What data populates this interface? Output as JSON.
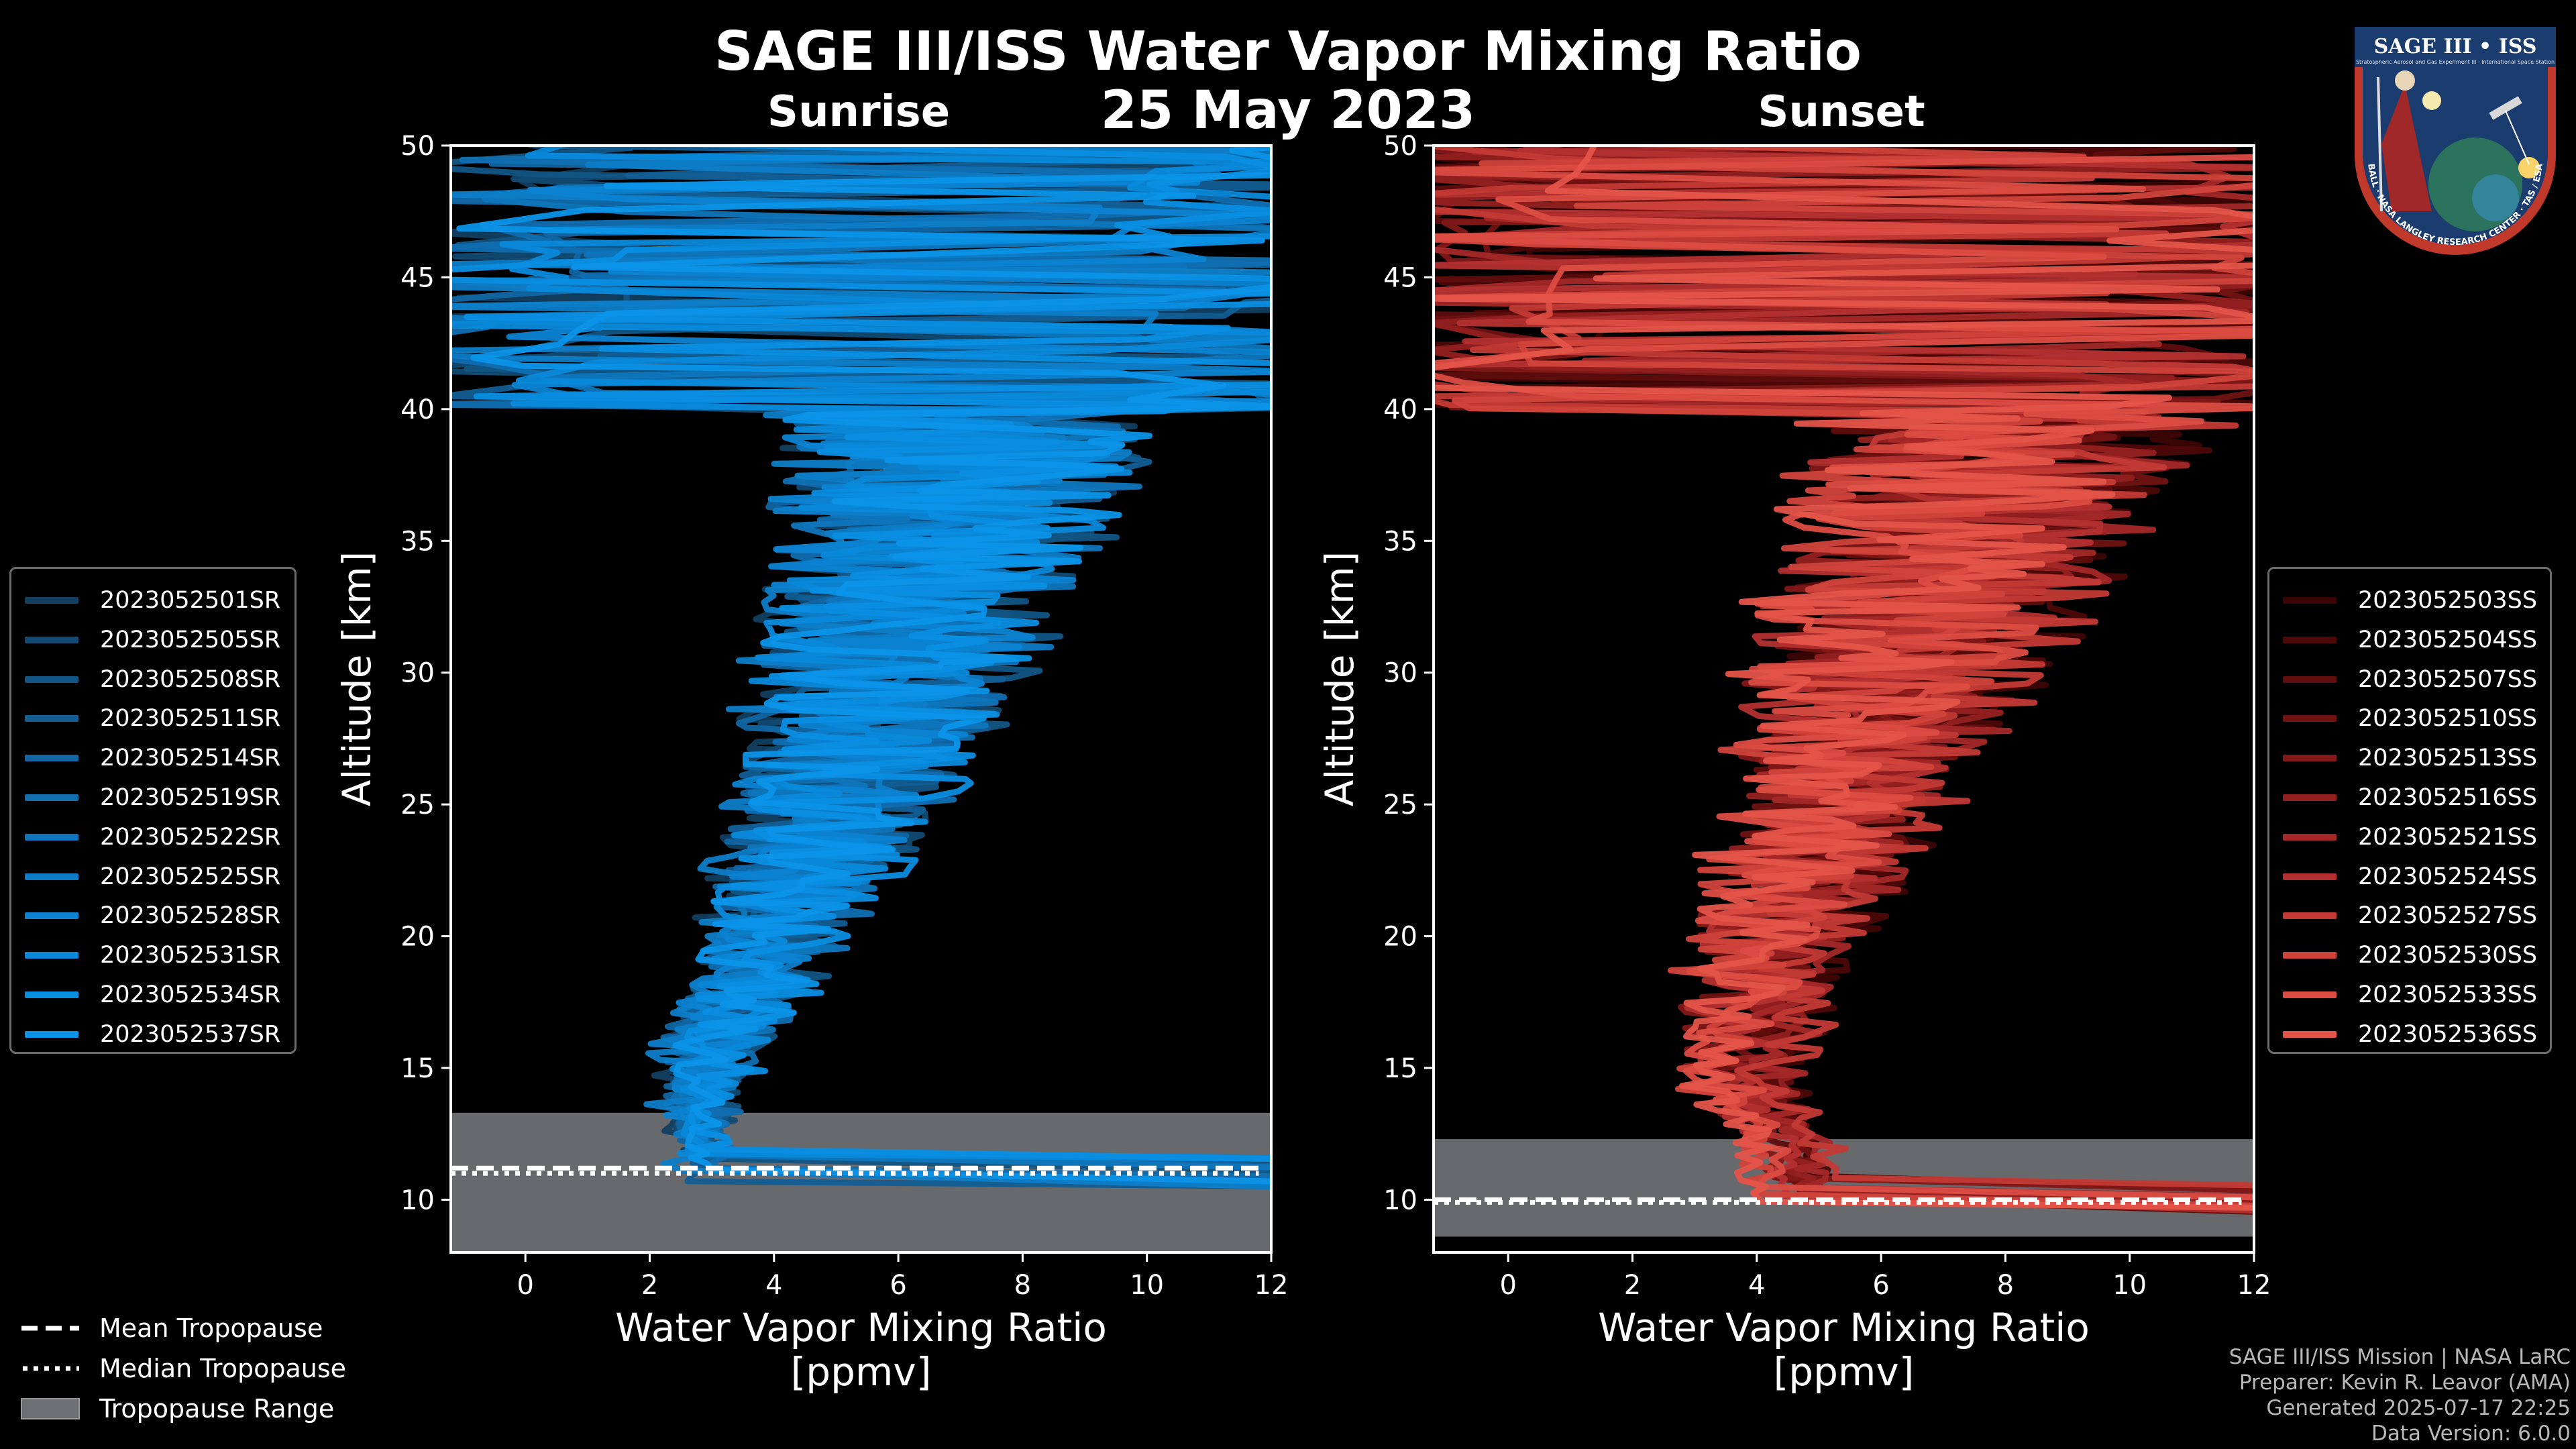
{
  "title": "SAGE III/ISS Water Vapor Mixing Ratio",
  "date": "25 May 2023",
  "chart_data": [
    {
      "type": "line",
      "panel": "Sunrise",
      "title": "Sunrise",
      "xlabel_line1": "Water Vapor Mixing Ratio",
      "xlabel_line2": "[ppmv]",
      "ylabel": "Altitude [km]",
      "xlim": [
        -1.2,
        12
      ],
      "ylim": [
        8,
        50
      ],
      "xticks": [
        0,
        2,
        4,
        6,
        8,
        10,
        12
      ],
      "yticks": [
        10,
        15,
        20,
        25,
        30,
        35,
        40,
        45,
        50
      ],
      "tropopause": {
        "mean_km": 11.2,
        "median_km": 11.0,
        "range_km": [
          8.0,
          13.3
        ],
        "mean_end_x": 11.8
      },
      "profile_shape": [
        [
          3.0,
          12.5
        ],
        [
          3.0,
          14
        ],
        [
          3.3,
          16
        ],
        [
          3.8,
          18
        ],
        [
          4.2,
          20
        ],
        [
          4.6,
          22
        ],
        [
          5.0,
          24
        ],
        [
          5.4,
          26
        ],
        [
          5.7,
          28
        ],
        [
          6.0,
          30
        ],
        [
          6.4,
          32
        ],
        [
          6.8,
          34
        ],
        [
          7.0,
          36
        ],
        [
          7.2,
          38
        ],
        [
          7.5,
          40
        ],
        [
          8.0,
          42
        ],
        [
          8.5,
          44
        ]
      ],
      "legend_position": "left",
      "series": [
        {
          "name": "2023052501SR",
          "color": "#123e5f"
        },
        {
          "name": "2023052505SR",
          "color": "#124a72"
        },
        {
          "name": "2023052508SR",
          "color": "#125584"
        },
        {
          "name": "2023052511SR",
          "color": "#125e95"
        },
        {
          "name": "2023052514SR",
          "color": "#1166a3"
        },
        {
          "name": "2023052519SR",
          "color": "#106eb1"
        },
        {
          "name": "2023052522SR",
          "color": "#0f76bd"
        },
        {
          "name": "2023052525SR",
          "color": "#0e7dc8"
        },
        {
          "name": "2023052528SR",
          "color": "#0c83d2"
        },
        {
          "name": "2023052531SR",
          "color": "#0a89da"
        },
        {
          "name": "2023052534SR",
          "color": "#0a8ee1"
        },
        {
          "name": "2023052537SR",
          "color": "#0b93e8"
        }
      ]
    },
    {
      "type": "line",
      "panel": "Sunset",
      "title": "Sunset",
      "xlabel_line1": "Water Vapor Mixing Ratio",
      "xlabel_line2": "[ppmv]",
      "ylabel": "Altitude [km]",
      "xlim": [
        -1.2,
        12
      ],
      "ylim": [
        8,
        50
      ],
      "xticks": [
        0,
        2,
        4,
        6,
        8,
        10,
        12
      ],
      "yticks": [
        10,
        15,
        20,
        25,
        30,
        35,
        40,
        45,
        50
      ],
      "tropopause": {
        "mean_km": 10.0,
        "median_km": 9.9,
        "range_km": [
          8.6,
          12.3
        ],
        "mean_end_x": 11.8
      },
      "profile_shape": [
        [
          4.5,
          12.0
        ],
        [
          3.8,
          14
        ],
        [
          3.8,
          16
        ],
        [
          4.0,
          18
        ],
        [
          4.3,
          20
        ],
        [
          4.7,
          22
        ],
        [
          5.0,
          24
        ],
        [
          5.4,
          26
        ],
        [
          5.8,
          28
        ],
        [
          6.2,
          30
        ],
        [
          6.6,
          32
        ],
        [
          7.0,
          34
        ],
        [
          7.4,
          36
        ],
        [
          7.8,
          38
        ],
        [
          8.5,
          40
        ],
        [
          9.0,
          42
        ],
        [
          9.5,
          44
        ]
      ],
      "legend_position": "right",
      "series": [
        {
          "name": "2023052503SS",
          "color": "#3c0505"
        },
        {
          "name": "2023052504SS",
          "color": "#4d0808"
        },
        {
          "name": "2023052507SS",
          "color": "#5f0d0d"
        },
        {
          "name": "2023052510SS",
          "color": "#701212"
        },
        {
          "name": "2023052513SS",
          "color": "#821818"
        },
        {
          "name": "2023052516SS",
          "color": "#932020"
        },
        {
          "name": "2023052521SS",
          "color": "#a42828"
        },
        {
          "name": "2023052524SS",
          "color": "#b43030"
        },
        {
          "name": "2023052527SS",
          "color": "#c33a35"
        },
        {
          "name": "2023052530SS",
          "color": "#d0433b"
        },
        {
          "name": "2023052533SS",
          "color": "#db4c42"
        },
        {
          "name": "2023052536SS",
          "color": "#e45449"
        }
      ]
    }
  ],
  "tropopause_legend": {
    "mean": "Mean Tropopause",
    "median": "Median Tropopause",
    "range": "Tropopause Range"
  },
  "credits": {
    "line1": "SAGE III/ISS Mission | NASA LaRC",
    "line2": "Preparer: Kevin R. Leavor (AMA)",
    "line3": "Generated 2025-07-17 22:25",
    "line4": "Data Version: 6.0.0"
  },
  "logo": {
    "title": "SAGE III • ISS",
    "subtitle": "Stratospheric Aerosol and Gas Experiment III · International Space Station",
    "ring_text": "BALL · NASA LANGLEY RESEARCH CENTER · TAS / ESA",
    "colors": {
      "ring": "#c0392b",
      "inner": "#1a3c6e",
      "text": "#ffffff"
    }
  }
}
